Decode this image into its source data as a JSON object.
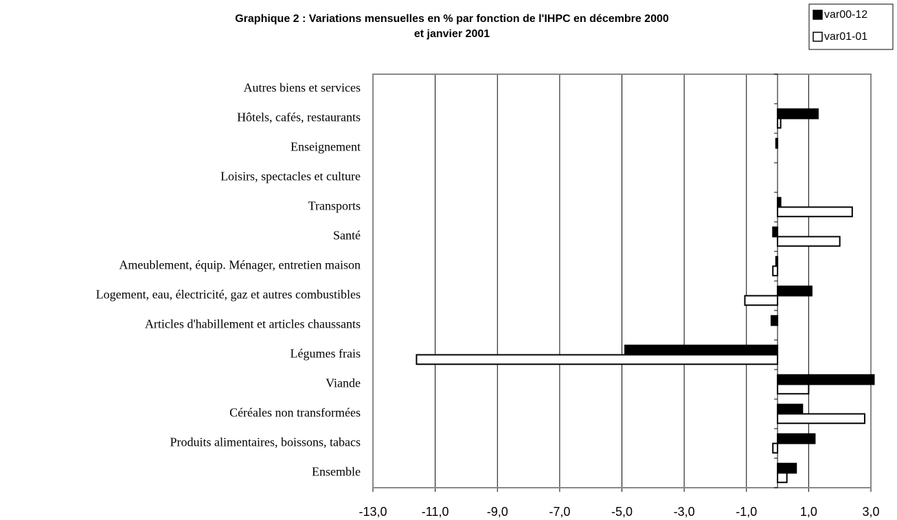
{
  "chart_data": {
    "type": "bar",
    "orientation": "horizontal",
    "title": "Graphique 2 : Variations mensuelles en % par fonction de l'IHPC en décembre 2000",
    "subtitle": "et janvier 2001",
    "categories": [
      "Ensemble",
      "Produits alimentaires, boissons, tabacs",
      "Céréales non transformées",
      "Viande",
      "Légumes frais",
      "Articles d'habillement et articles chaussants",
      "Logement, eau, électricité, gaz et autres combustibles",
      "Ameublement, équip. Ménager, entretien maison",
      "Santé",
      "Transports",
      "Loisirs, spectacles et culture",
      "Enseignement",
      "Hôtels, cafés, restaurants",
      "Autres biens et services"
    ],
    "series": [
      {
        "name": "var00-12",
        "color": "#000000",
        "values": [
          0.6,
          1.2,
          0.8,
          3.1,
          -4.9,
          -0.2,
          1.1,
          -0.05,
          -0.15,
          0.1,
          0,
          -0.05,
          1.3,
          0
        ]
      },
      {
        "name": "var01-01",
        "color": "#ffffff",
        "values": [
          0.3,
          -0.15,
          2.8,
          1.0,
          -11.6,
          0,
          -1.05,
          -0.15,
          2.0,
          2.4,
          0,
          0,
          0.1,
          0
        ]
      }
    ],
    "xlim": [
      -13,
      3
    ],
    "xticks": [
      {
        "value": -13,
        "label": "-13,0"
      },
      {
        "value": -11,
        "label": "-11,0"
      },
      {
        "value": -9,
        "label": "-9,0"
      },
      {
        "value": -7,
        "label": "-7,0"
      },
      {
        "value": -5,
        "label": "-5,0"
      },
      {
        "value": -3,
        "label": "-3,0"
      },
      {
        "value": -1,
        "label": "-1,0"
      },
      {
        "value": 1,
        "label": "1,0"
      },
      {
        "value": 3,
        "label": "3,0"
      }
    ],
    "grid": true,
    "legend": "top-right"
  }
}
